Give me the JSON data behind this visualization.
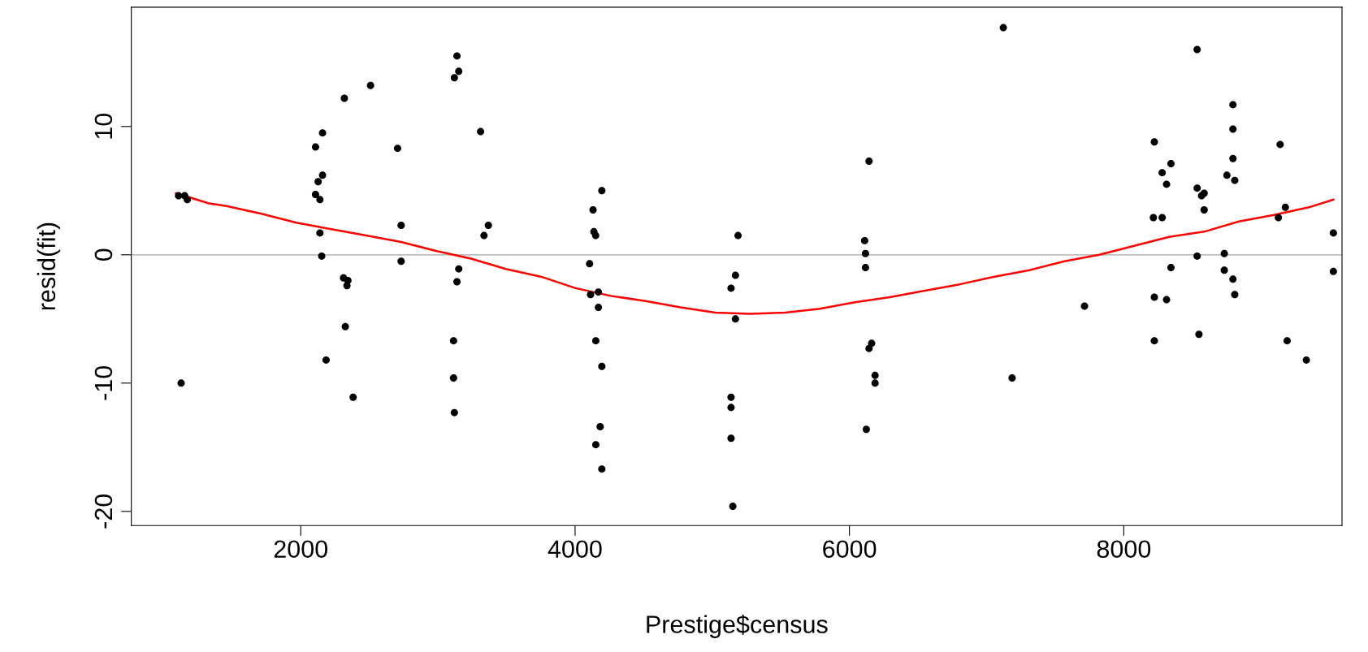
{
  "chart_data": {
    "type": "scatter",
    "xlabel": "Prestige$census",
    "ylabel": "resid(fit)",
    "xlim": [
      765,
      9591
    ],
    "ylim": [
      -21.1,
      19.3
    ],
    "xticks": [
      2000,
      4000,
      6000,
      8000
    ],
    "yticks": [
      -20,
      -10,
      0,
      10
    ],
    "grid": false,
    "legend": false,
    "marker": "circle",
    "ref_lines": [
      {
        "axis": "y",
        "value": 0,
        "color": "#bebebe"
      }
    ],
    "series": [
      {
        "color": "#000000",
        "x": [
          1109,
          1154,
          1173,
          1128,
          2108,
          2108,
          2127,
          2140,
          2159,
          2159,
          2140,
          2153,
          2185,
          2318,
          2312,
          2344,
          2337,
          2325,
          2382,
          2509,
          2706,
          2732,
          2732,
          3139,
          3152,
          3120,
          3311,
          3368,
          3336,
          3152,
          3139,
          3114,
          3114,
          3120,
          4195,
          4131,
          4137,
          4150,
          4106,
          4113,
          4170,
          4170,
          4151,
          4195,
          4183,
          4151,
          4195,
          5137,
          5169,
          5188,
          5169,
          5137,
          5137,
          5137,
          5150,
          6143,
          6111,
          6117,
          6117,
          6162,
          6143,
          6187,
          6187,
          6123,
          7122,
          7186,
          7714,
          8223,
          8280,
          8344,
          8312,
          8216,
          8280,
          8344,
          8312,
          8223,
          8223,
          8535,
          8796,
          8796,
          8796,
          8809,
          8752,
          8535,
          8586,
          8567,
          8586,
          8535,
          8733,
          8733,
          8796,
          8809,
          8548,
          9140,
          9178,
          9127,
          9191,
          9331,
          9528,
          9528
        ],
        "values": [
          4.6,
          4.6,
          4.3,
          -10.0,
          8.4,
          4.7,
          5.7,
          4.3,
          9.5,
          6.2,
          1.7,
          -0.1,
          -8.2,
          12.2,
          -1.8,
          -2.0,
          -2.4,
          -5.6,
          -11.1,
          13.2,
          8.3,
          2.3,
          -0.5,
          15.5,
          14.3,
          13.8,
          9.6,
          2.3,
          1.5,
          -1.1,
          -2.1,
          -6.7,
          -9.6,
          -12.3,
          5.0,
          3.5,
          1.8,
          1.5,
          -0.7,
          -3.1,
          -2.9,
          -4.1,
          -6.7,
          -8.7,
          -13.4,
          -14.8,
          -16.7,
          -2.6,
          -1.6,
          1.5,
          -5.0,
          -11.1,
          -11.9,
          -14.3,
          -19.6,
          7.3,
          1.1,
          0.1,
          -1.0,
          -6.9,
          -7.3,
          -9.4,
          -10.0,
          -13.6,
          17.7,
          -9.6,
          -4.0,
          8.8,
          6.4,
          7.1,
          5.5,
          2.9,
          2.9,
          -1.0,
          -3.5,
          -3.3,
          -6.7,
          16.0,
          11.7,
          9.8,
          7.5,
          5.8,
          6.2,
          5.2,
          4.8,
          4.6,
          3.5,
          -0.1,
          0.1,
          -1.2,
          -1.9,
          -3.1,
          -6.2,
          8.6,
          3.7,
          2.9,
          -6.7,
          -8.2,
          1.7,
          -1.3
        ]
      },
      {
        "type": "line",
        "color": "#ff0000",
        "marker": "none",
        "line_style": "solid",
        "x": [
          1090,
          1332,
          1459,
          1714,
          1968,
          2223,
          2477,
          2732,
          2986,
          3241,
          3495,
          3750,
          4004,
          4259,
          4514,
          4768,
          5023,
          5277,
          5532,
          5786,
          6041,
          6295,
          6550,
          6804,
          7059,
          7313,
          7568,
          7822,
          8077,
          8331,
          8586,
          8840,
          9095,
          9350,
          9528
        ],
        "values": [
          4.8,
          4.0,
          3.8,
          3.2,
          2.5,
          2.0,
          1.5,
          1.0,
          0.3,
          -0.3,
          -1.1,
          -1.7,
          -2.6,
          -3.2,
          -3.6,
          -4.1,
          -4.5,
          -4.6,
          -4.5,
          -4.2,
          -3.7,
          -3.3,
          -2.8,
          -2.3,
          -1.7,
          -1.2,
          -0.5,
          0.0,
          0.7,
          1.4,
          1.8,
          2.6,
          3.1,
          3.7,
          4.3
        ]
      }
    ]
  }
}
